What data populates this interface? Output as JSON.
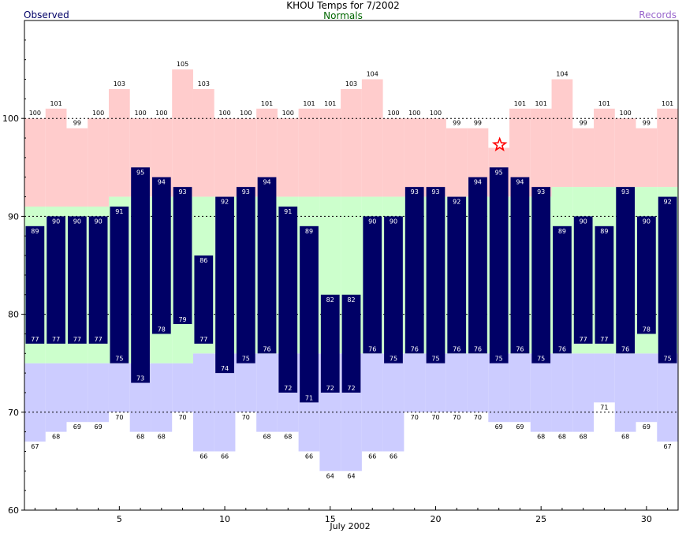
{
  "title": "KHOU Temps for 7/2002",
  "legend": {
    "observed": "Observed",
    "normals": "Normals",
    "records": "Records"
  },
  "colors": {
    "observed_bar": "#000066",
    "normal_band": "#ccffcc",
    "record_high_band": "#ffcccc",
    "record_low_band": "#ccccff",
    "observed_text": "#000066",
    "normals_text": "#006600",
    "records_text": "#9966cc",
    "star": "#ff0000"
  },
  "chart_data": {
    "type": "bar",
    "title": "KHOU Temps for 7/2002",
    "xlabel": "July 2002",
    "ylabel": "",
    "xlim": [
      0.5,
      31.5
    ],
    "ylim": [
      60,
      110
    ],
    "yticks": [
      60,
      70,
      80,
      90,
      100
    ],
    "xticks": [
      5,
      10,
      15,
      20,
      25,
      30
    ],
    "grid": "dashed at 70, 80, 90, 100",
    "days": [
      1,
      2,
      3,
      4,
      5,
      6,
      7,
      8,
      9,
      10,
      11,
      12,
      13,
      14,
      15,
      16,
      17,
      18,
      19,
      20,
      21,
      22,
      23,
      24,
      25,
      26,
      27,
      28,
      29,
      30,
      31
    ],
    "observed_high": [
      89,
      90,
      90,
      90,
      91,
      95,
      94,
      93,
      86,
      92,
      93,
      94,
      91,
      89,
      82,
      82,
      90,
      90,
      93,
      93,
      92,
      94,
      95,
      94,
      93,
      89,
      90,
      89,
      93,
      90,
      92
    ],
    "observed_low": [
      77,
      77,
      77,
      77,
      75,
      73,
      78,
      79,
      77,
      74,
      75,
      76,
      72,
      71,
      72,
      72,
      76,
      75,
      76,
      75,
      76,
      76,
      75,
      76,
      75,
      76,
      77,
      77,
      76,
      78,
      75
    ],
    "normal_high": [
      91,
      91,
      91,
      91,
      92,
      92,
      92,
      92,
      92,
      92,
      92,
      92,
      92,
      92,
      92,
      92,
      92,
      92,
      92,
      92,
      92,
      92,
      92,
      92,
      92,
      93,
      93,
      93,
      93,
      93,
      93
    ],
    "normal_low": [
      75,
      75,
      75,
      75,
      75,
      75,
      75,
      75,
      76,
      76,
      76,
      76,
      76,
      76,
      76,
      76,
      76,
      76,
      76,
      76,
      76,
      76,
      76,
      76,
      76,
      76,
      76,
      76,
      76,
      76,
      76
    ],
    "record_high": [
      100,
      101,
      99,
      100,
      103,
      100,
      100,
      105,
      103,
      100,
      100,
      101,
      100,
      101,
      101,
      103,
      104,
      100,
      100,
      100,
      99,
      99,
      97,
      101,
      101,
      104,
      99,
      101,
      100,
      99,
      101
    ],
    "record_low": [
      67,
      68,
      69,
      69,
      70,
      68,
      68,
      70,
      66,
      66,
      70,
      68,
      68,
      66,
      64,
      64,
      66,
      66,
      70,
      70,
      70,
      70,
      69,
      69,
      68,
      68,
      68,
      71,
      68,
      69,
      67
    ],
    "record_high_labels": [
      "100",
      "101",
      "99",
      "100",
      "103",
      "100",
      "100",
      "105",
      "103",
      "100",
      "100",
      "101",
      "100",
      "101",
      "101",
      "103",
      "104",
      "100",
      "100",
      "100",
      "99",
      "99",
      "",
      "101",
      "101",
      "104",
      "99",
      "101",
      "100",
      "99",
      "101"
    ],
    "record_low_labels": [
      "67",
      "68",
      "69",
      "69",
      "70",
      "68",
      "68",
      "70",
      "66",
      "66",
      "70",
      "68",
      "68",
      "66",
      "64",
      "64",
      "66",
      "66",
      "70",
      "70",
      "70",
      "70",
      "69",
      "69",
      "68",
      "68",
      "68",
      "71",
      "68",
      "69",
      "67"
    ],
    "record_set_days": [
      23
    ]
  }
}
